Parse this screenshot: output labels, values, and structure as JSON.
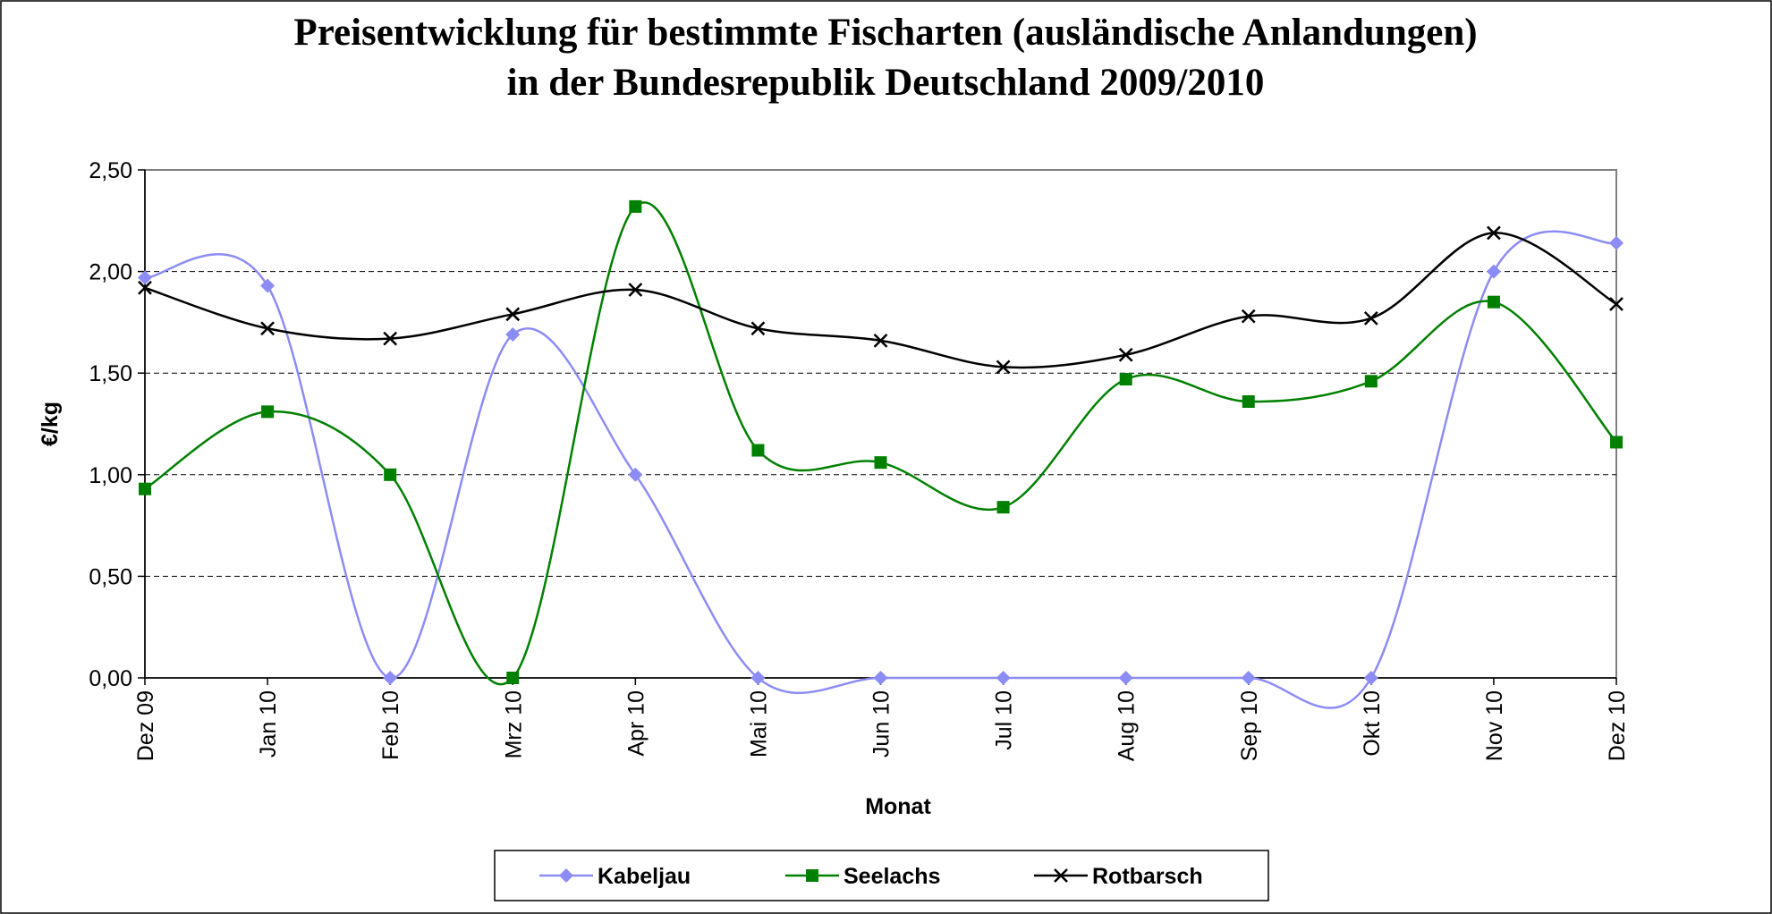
{
  "chart_data": {
    "type": "line",
    "title": [
      "Preisentwicklung für bestimmte Fischarten (ausländische Anlandungen)",
      "in der Bundesrepublik Deutschland  2009/2010"
    ],
    "x_label": "Monat",
    "y_label": "€/kg",
    "categories": [
      "Dez 09",
      "Jan 10",
      "Feb 10",
      "Mrz 10",
      "Apr 10",
      "Mai 10",
      "Jun 10",
      "Jul 10",
      "Aug 10",
      "Sep 10",
      "Okt 10",
      "Nov 10",
      "Dez 10"
    ],
    "series": [
      {
        "name": "Kabeljau",
        "color": "#8c8cf5",
        "marker": "diamond",
        "values": [
          1.97,
          1.93,
          0,
          1.69,
          1.0,
          0,
          0,
          0,
          0,
          0,
          0,
          2.0,
          2.14
        ]
      },
      {
        "name": "Seelachs",
        "color": "#008000",
        "marker": "square",
        "values": [
          0.93,
          1.31,
          1.0,
          0,
          2.32,
          1.12,
          1.06,
          0.84,
          1.47,
          1.36,
          1.46,
          1.85,
          1.16
        ]
      },
      {
        "name": "Rotbarsch",
        "color": "#000000",
        "marker": "x",
        "values": [
          1.92,
          1.72,
          1.67,
          1.79,
          1.91,
          1.72,
          1.66,
          1.53,
          1.59,
          1.78,
          1.77,
          2.19,
          1.84
        ]
      }
    ],
    "ylim": [
      0,
      2.5
    ],
    "yticks": [
      {
        "value": 0,
        "label": "0,00"
      },
      {
        "value": 0.5,
        "label": "0,50"
      },
      {
        "value": 1,
        "label": "1,00"
      },
      {
        "value": 1.5,
        "label": "1,50"
      },
      {
        "value": 2,
        "label": "2,00"
      },
      {
        "value": 2.5,
        "label": "2,50"
      }
    ],
    "grid": true,
    "smooth": true,
    "legend": "bottom"
  }
}
